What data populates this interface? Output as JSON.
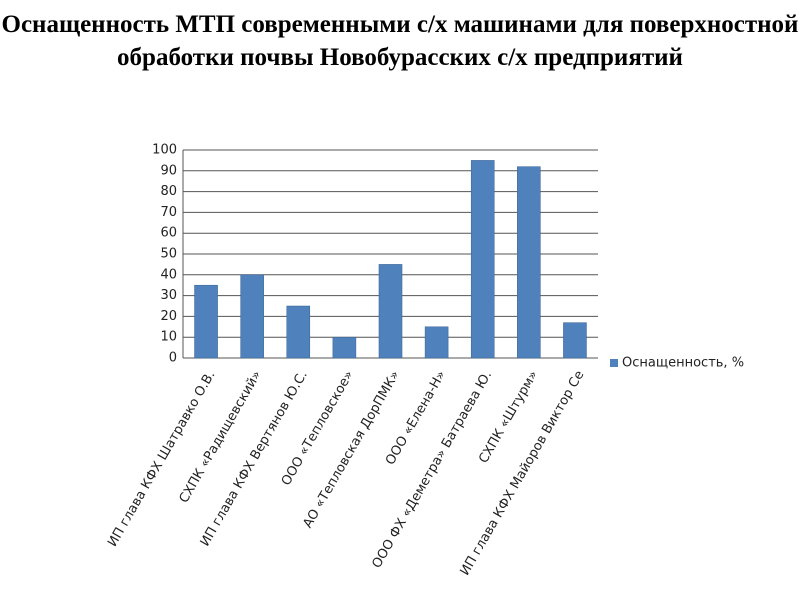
{
  "chart_data": {
    "type": "bar",
    "title": "Оснащенность МТП современными с/х машинами для поверхностной обработки почвы Новобурасских с/х предприятий",
    "categories": [
      "ИП глава КФХ Шатравко О.В.",
      "СХПК «Радищевский»",
      "ИП глава КФХ Вертянов Ю.С.",
      "ООО «Тепловское»",
      "АО «Тепловская ДорПМК»",
      "ООО «Елена-Н»",
      "ООО ФХ «Деметра» Батраева Ю.",
      "СХПК «Штурм»",
      "ИП глава КФХ Майоров Виктор Се"
    ],
    "series": [
      {
        "name": "Оснащенность, %",
        "color": "#4f81bd",
        "values": [
          35,
          40,
          25,
          10,
          45,
          15,
          95,
          92,
          17
        ]
      }
    ],
    "ylim": [
      0,
      100
    ],
    "yticks": [
      0,
      10,
      20,
      30,
      40,
      50,
      60,
      70,
      80,
      90,
      100
    ],
    "grid": true,
    "legend": "right"
  }
}
